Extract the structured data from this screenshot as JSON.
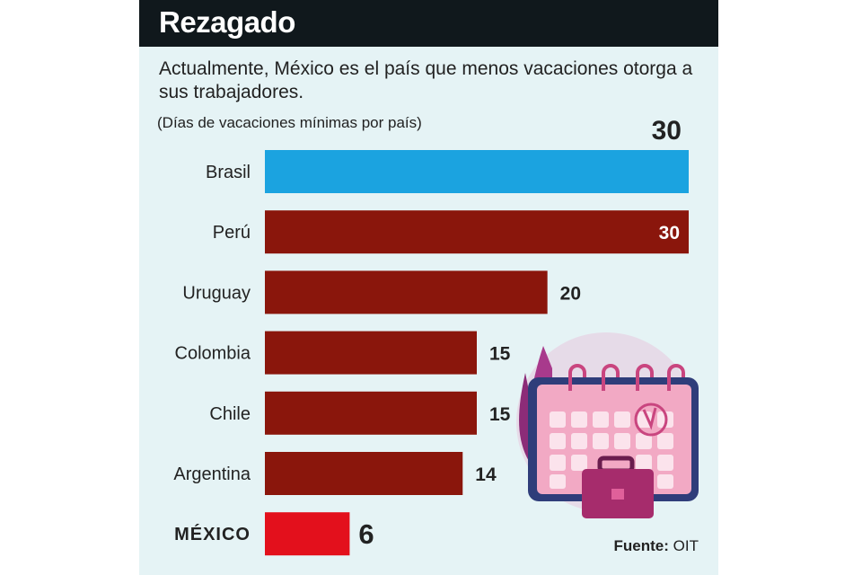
{
  "title": "Rezagado",
  "subtitle": "Actualmente, México es el país que menos vacaciones otorga a sus trabajadores.",
  "source_label": "Fuente:",
  "source_value": "OIT",
  "chart_data": {
    "type": "bar",
    "orientation": "horizontal",
    "title": "Rezagado",
    "unit_label": "(Días de vacaciones mínimas por país)",
    "categories": [
      "Brasil",
      "Perú",
      "Uruguay",
      "Colombia",
      "Chile",
      "Argentina",
      "MÉXICO"
    ],
    "values": [
      30,
      30,
      20,
      15,
      15,
      14,
      6
    ],
    "xlim": [
      0,
      30
    ],
    "grid": false,
    "colors": [
      "#1ba3e0",
      "#8a160c",
      "#8a160c",
      "#8a160c",
      "#8a160c",
      "#8a160c",
      "#e3101c"
    ]
  }
}
